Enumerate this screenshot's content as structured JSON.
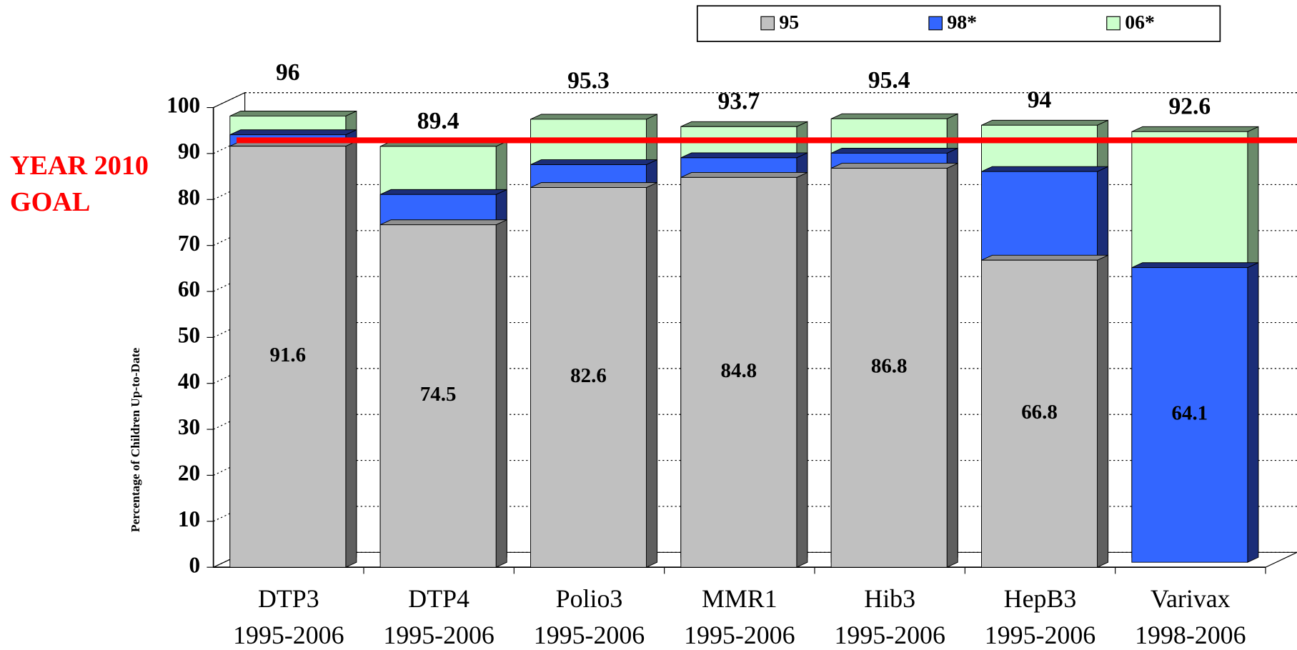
{
  "chart_data": {
    "type": "bar3d",
    "y_axis_label": "Percentage of Children Up-to-Date",
    "categories": [
      [
        "DTP3",
        "1995-2006"
      ],
      [
        "DTP4",
        "1995-2006"
      ],
      [
        "Polio3",
        "1995-2006"
      ],
      [
        "MMR1",
        "1995-2006"
      ],
      [
        "Hib3",
        "1995-2006"
      ],
      [
        "HepB3",
        "1995-2006"
      ],
      [
        "Varivax",
        "1998-2006"
      ]
    ],
    "series": [
      {
        "name": "95",
        "color": "#c0c0c0",
        "side": "#5f5f5f",
        "values": [
          91.6,
          74.5,
          82.6,
          84.8,
          86.8,
          66.8,
          null
        ],
        "labels": "inside"
      },
      {
        "name": "98*",
        "color": "#3366ff",
        "side": "#1b2d78",
        "values": [
          93,
          80,
          86.5,
          88,
          89,
          85,
          64.1
        ],
        "value_labels": [
          null,
          null,
          null,
          null,
          null,
          null,
          "64.1"
        ],
        "labels": "inside"
      },
      {
        "name": "06*",
        "color": "#ccffcc",
        "side": "#6b8a6b",
        "values": [
          96,
          89.4,
          95.3,
          93.7,
          95.4,
          94,
          92.6
        ],
        "labels": "above"
      }
    ],
    "ylim": [
      0,
      100
    ],
    "yticks": [
      0,
      10,
      20,
      30,
      40,
      50,
      60,
      70,
      80,
      90,
      100
    ],
    "grid": true,
    "legend": "top",
    "goal": {
      "value": 90,
      "label_lines": [
        "YEAR 2010",
        "GOAL"
      ],
      "color": "#ff0000"
    }
  }
}
